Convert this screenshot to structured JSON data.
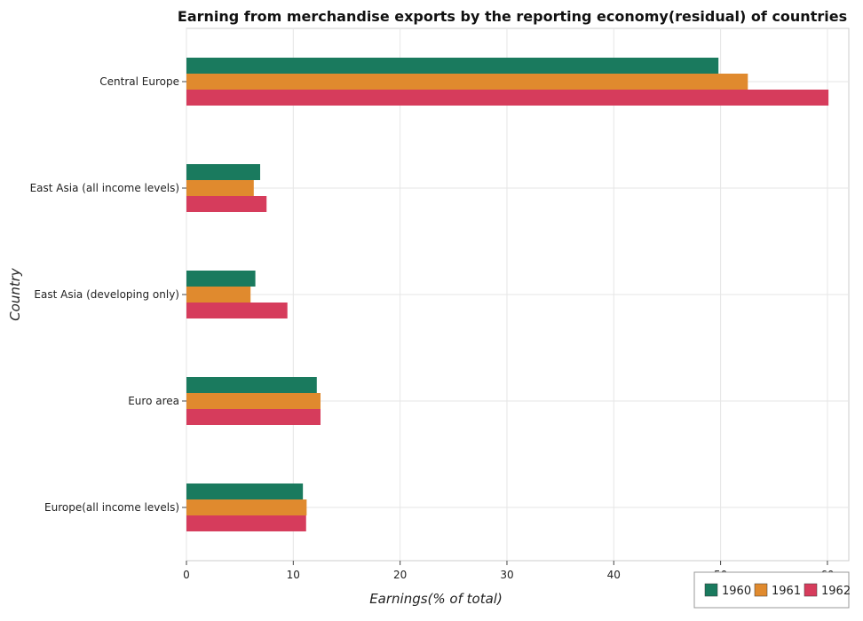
{
  "chart_data": {
    "type": "bar",
    "orientation": "horizontal",
    "title": "Earning from merchandise exports by the reporting economy(residual) of countries",
    "xlabel": "Earnings(% of total)",
    "ylabel": "Country",
    "xlim": [
      0,
      62
    ],
    "xticks": [
      0,
      10,
      20,
      30,
      40,
      50,
      60
    ],
    "categories": [
      "Central Europe",
      "East Asia (all income levels)",
      "East Asia (developing only)",
      "Euro area",
      "Europe(all income levels)"
    ],
    "series": [
      {
        "name": "1960",
        "color": "#1a7a5e",
        "values": [
          49.8,
          6.9,
          6.45,
          12.2,
          10.9
        ]
      },
      {
        "name": "1961",
        "color": "#e08a2e",
        "values": [
          52.55,
          6.3,
          6.0,
          12.55,
          11.25
        ]
      },
      {
        "name": "1962",
        "color": "#d63c5c",
        "values": [
          60.1,
          7.5,
          9.45,
          12.55,
          11.2
        ]
      }
    ],
    "grid": true,
    "legend_position": "bottom-right"
  }
}
